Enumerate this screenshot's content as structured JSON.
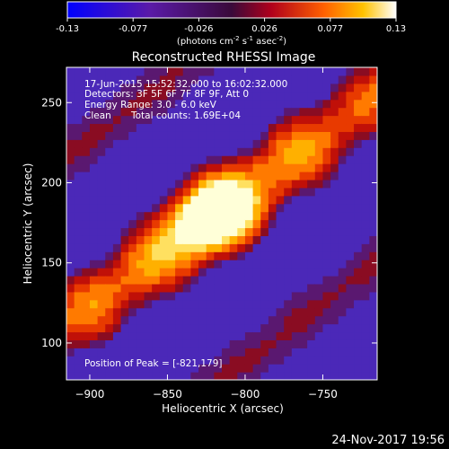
{
  "chart_data": {
    "type": "heatmap",
    "title": "Reconstructed RHESSI Image",
    "xlabel": "Heliocentric X (arcsec)",
    "ylabel": "Heliocentric Y (arcsec)",
    "xlim": [
      -915,
      -715
    ],
    "ylim": [
      77,
      272
    ],
    "xticks": [
      -900,
      -850,
      -800,
      -750
    ],
    "yticks": [
      100,
      150,
      200,
      250
    ],
    "peak": [
      -821,
      179
    ],
    "colorbar": {
      "min": -0.13,
      "max": 0.13,
      "ticks": [
        "-0.13",
        "-0.077",
        "-0.026",
        "0.026",
        "0.077",
        "0.13"
      ],
      "unit_prefix": "(photons cm",
      "unit_exp1": "-2",
      "unit_mid": " s",
      "unit_exp2": "-1",
      "unit_mid2": " asec",
      "unit_exp3": "-2",
      "unit_suffix": ")"
    },
    "colors": {
      "negative": "#3f28c8",
      "positive_low": "#a01410",
      "positive_mid": "#ff7a00",
      "positive_high": "#ffffc8",
      "background": "#000000"
    }
  },
  "annotations": {
    "line1": "17-Jun-2015 15:52:32.000 to 16:02:32.000",
    "line2": "Detectors: 3F 5F 6F 7F 8F 9F, Att 0",
    "line3": "Energy Range: 3.0 - 6.0 keV",
    "line4a": "Clean",
    "line4b": "Total counts: 1.69E+04",
    "peak_label": "Position of Peak = [-821,179]"
  },
  "footer_date": "24-Nov-2017 19:56"
}
